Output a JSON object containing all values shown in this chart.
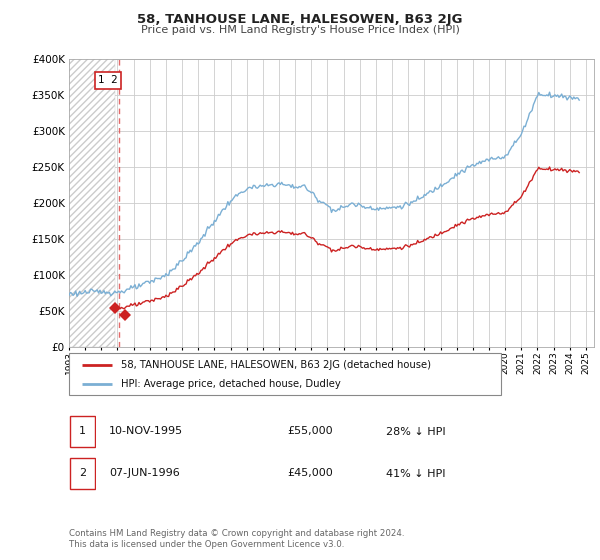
{
  "title": "58, TANHOUSE LANE, HALESOWEN, B63 2JG",
  "subtitle": "Price paid vs. HM Land Registry's House Price Index (HPI)",
  "ylim": [
    0,
    400000
  ],
  "yticks": [
    0,
    50000,
    100000,
    150000,
    200000,
    250000,
    300000,
    350000,
    400000
  ],
  "xlim_start": 1993.0,
  "xlim_end": 2025.5,
  "transaction_dates": [
    1995.86,
    1996.44
  ],
  "transaction_prices": [
    55000,
    45000
  ],
  "transaction_labels": [
    "1",
    "2"
  ],
  "vline_x": 1996.08,
  "vline_color": "#dd4444",
  "legend_label_red": "58, TANHOUSE LANE, HALESOWEN, B63 2JG (detached house)",
  "legend_label_blue": "HPI: Average price, detached house, Dudley",
  "table_rows": [
    {
      "num": "1",
      "date": "10-NOV-1995",
      "price": "£55,000",
      "change": "28% ↓ HPI"
    },
    {
      "num": "2",
      "date": "07-JUN-1996",
      "price": "£45,000",
      "change": "41% ↓ HPI"
    }
  ],
  "footnote": "Contains HM Land Registry data © Crown copyright and database right 2024.\nThis data is licensed under the Open Government Licence v3.0.",
  "grid_color": "#cccccc",
  "bg_color": "#ffffff",
  "hpi_color": "#7bafd4",
  "red_line_color": "#cc2222",
  "hatch_color": "#cccccc"
}
